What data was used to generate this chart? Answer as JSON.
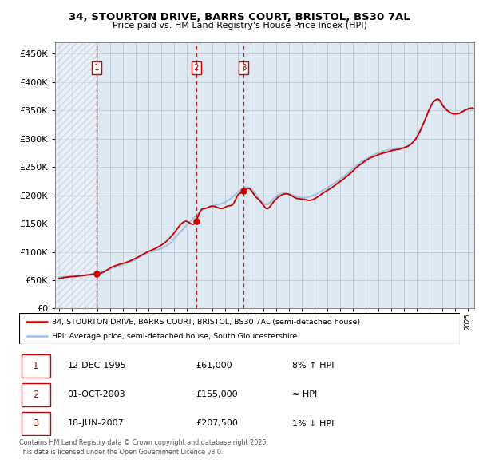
{
  "title_line1": "34, STOURTON DRIVE, BARRS COURT, BRISTOL, BS30 7AL",
  "title_line2": "Price paid vs. HM Land Registry's House Price Index (HPI)",
  "ytick_values": [
    0,
    50000,
    100000,
    150000,
    200000,
    250000,
    300000,
    350000,
    400000,
    450000
  ],
  "ylim": [
    0,
    470000
  ],
  "xlim_start": 1992.7,
  "xlim_end": 2025.5,
  "sale_dates": [
    1995.95,
    2003.75,
    2007.47
  ],
  "sale_prices": [
    61000,
    155000,
    207500
  ],
  "sale_labels": [
    "1",
    "2",
    "3"
  ],
  "hpi_color": "#9bbfe0",
  "price_color": "#cc0000",
  "legend_price_label": "34, STOURTON DRIVE, BARRS COURT, BRISTOL, BS30 7AL (semi-detached house)",
  "legend_hpi_label": "HPI: Average price, semi-detached house, South Gloucestershire",
  "table_rows": [
    [
      "1",
      "12-DEC-1995",
      "£61,000",
      "8% ↑ HPI"
    ],
    [
      "2",
      "01-OCT-2003",
      "£155,000",
      "≈ HPI"
    ],
    [
      "3",
      "18-JUN-2007",
      "£207,500",
      "1% ↓ HPI"
    ]
  ],
  "footer_text": "Contains HM Land Registry data © Crown copyright and database right 2025.\nThis data is licensed under the Open Government Licence v3.0.",
  "bg_color": "#dde8f0",
  "grid_color": "#b0b8c8"
}
